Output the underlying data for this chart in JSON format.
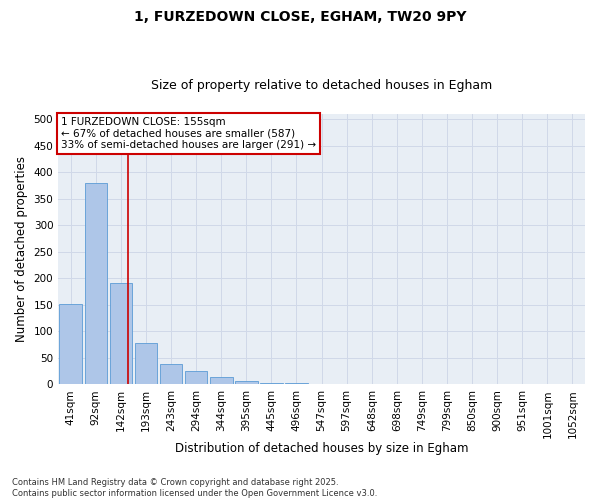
{
  "title1": "1, FURZEDOWN CLOSE, EGHAM, TW20 9PY",
  "title2": "Size of property relative to detached houses in Egham",
  "xlabel": "Distribution of detached houses by size in Egham",
  "ylabel": "Number of detached properties",
  "bin_labels": [
    "41sqm",
    "92sqm",
    "142sqm",
    "193sqm",
    "243sqm",
    "294sqm",
    "344sqm",
    "395sqm",
    "445sqm",
    "496sqm",
    "547sqm",
    "597sqm",
    "648sqm",
    "698sqm",
    "749sqm",
    "799sqm",
    "850sqm",
    "900sqm",
    "951sqm",
    "1001sqm",
    "1052sqm"
  ],
  "bar_heights": [
    152,
    380,
    191,
    78,
    38,
    25,
    14,
    6,
    3,
    2,
    1,
    0.5,
    0.5,
    0,
    0,
    0,
    0,
    0,
    0,
    0,
    0
  ],
  "bar_color": "#aec6e8",
  "bar_edge_color": "#5b9bd5",
  "grid_color": "#d0d8e8",
  "vline_color": "#cc0000",
  "annotation_line1": "1 FURZEDOWN CLOSE: 155sqm",
  "annotation_line2": "← 67% of detached houses are smaller (587)",
  "annotation_line3": "33% of semi-detached houses are larger (291) →",
  "footer_text": "Contains HM Land Registry data © Crown copyright and database right 2025.\nContains public sector information licensed under the Open Government Licence v3.0.",
  "ylim": [
    0,
    510
  ],
  "yticks": [
    0,
    50,
    100,
    150,
    200,
    250,
    300,
    350,
    400,
    450,
    500
  ],
  "background_color": "#e8eef5",
  "title1_fontsize": 10,
  "title2_fontsize": 9,
  "ylabel_fontsize": 8.5,
  "xlabel_fontsize": 8.5,
  "tick_fontsize": 7.5,
  "annotation_fontsize": 7.5,
  "footer_fontsize": 6.0
}
